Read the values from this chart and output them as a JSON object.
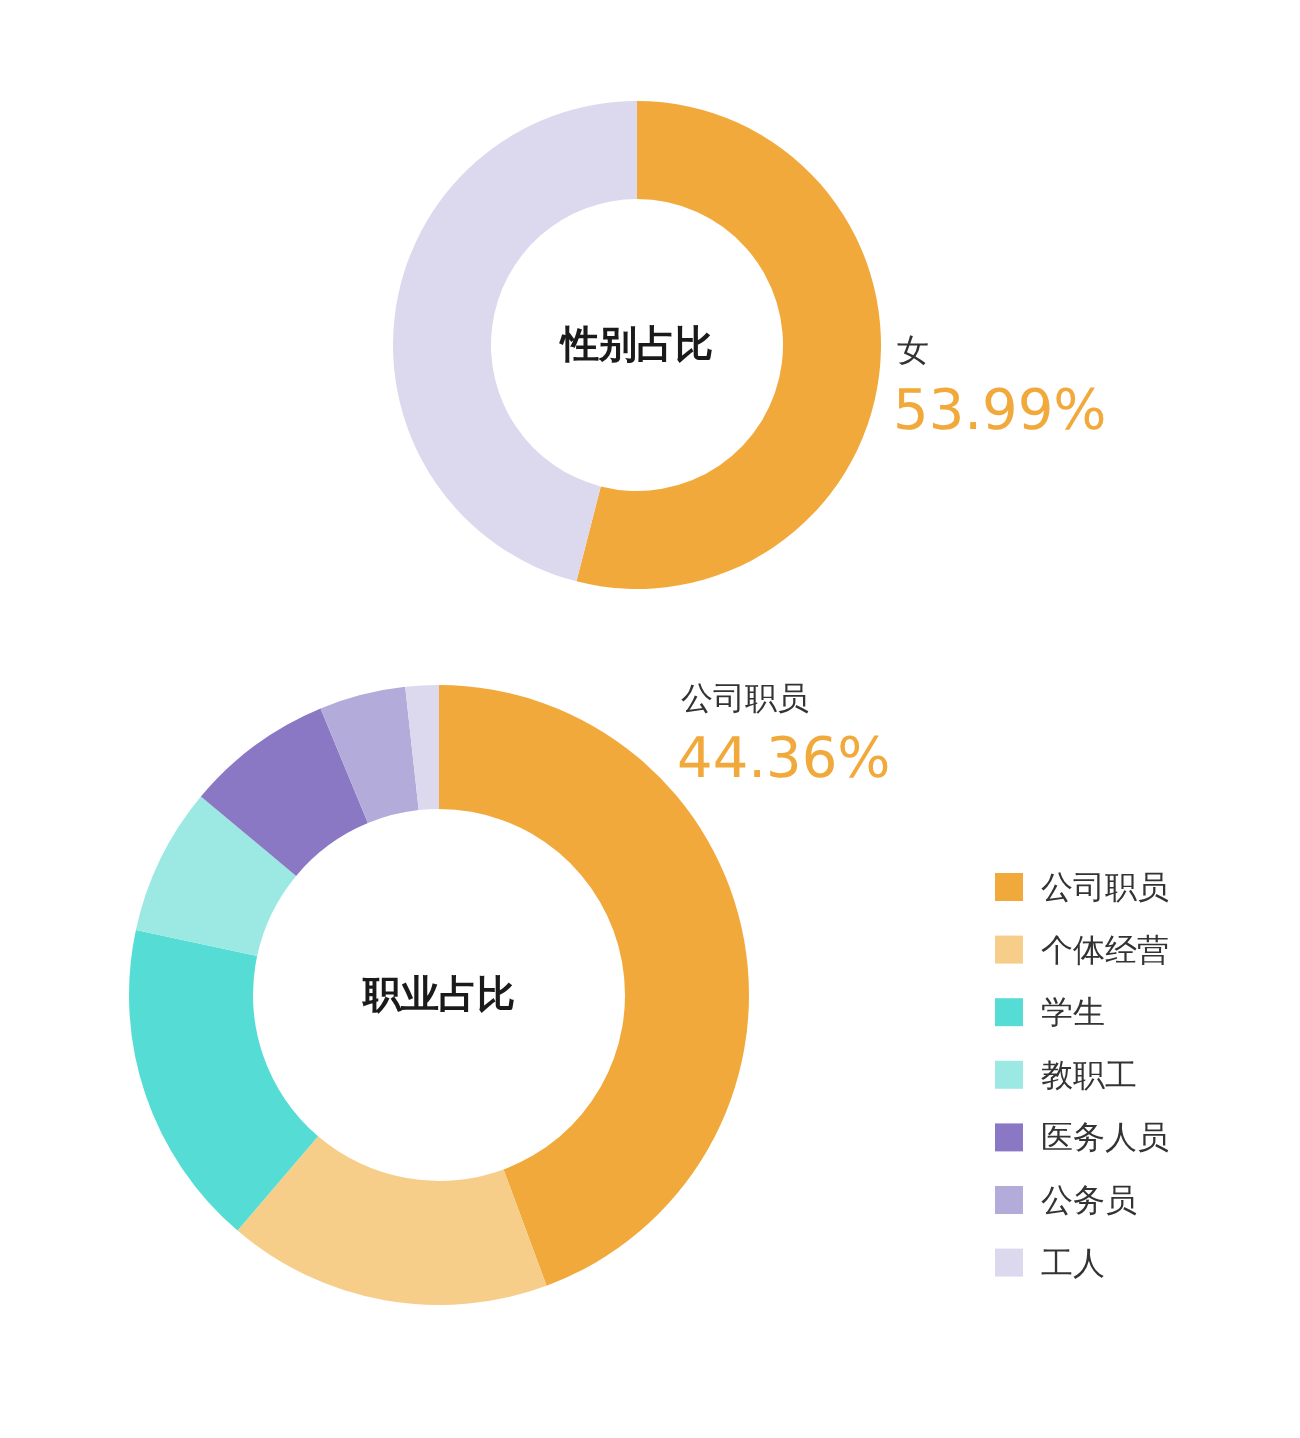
{
  "chart_data": [
    {
      "type": "donut",
      "title": "性别占比",
      "categories": [
        "女",
        null
      ],
      "values": [
        53.99,
        46.01
      ],
      "colors": [
        "#f2a93b",
        "#dcd8ee"
      ],
      "value_labels": [
        "53.99%",
        null
      ]
    },
    {
      "type": "donut",
      "title": "职业占比",
      "categories": [
        "公司职员",
        "个体经营",
        "学生",
        "教职工",
        "医务人员",
        "公务员",
        "工人"
      ],
      "values": [
        44.36,
        16.9,
        17.1,
        7.7,
        7.7,
        4.5,
        1.74
      ],
      "colors": [
        "#f2a93b",
        "#f7cd8a",
        "#55ddd5",
        "#9ce8e2",
        "#8a78c5",
        "#b3acdb",
        "#dcd8ee"
      ],
      "value_labels": [
        "44.36%",
        null,
        null,
        null,
        null,
        null,
        null
      ],
      "legend": "right"
    }
  ]
}
